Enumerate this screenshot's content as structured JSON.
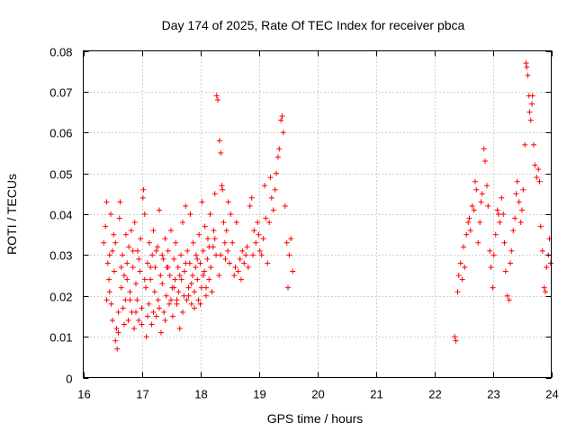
{
  "chart_data": {
    "type": "scatter",
    "title": "Day 174 of 2025, Rate Of TEC Index for receiver pbca",
    "xlabel": "GPS time / hours",
    "ylabel": "ROTI / TECUs",
    "xlim": [
      16,
      24
    ],
    "ylim": [
      0,
      0.08
    ],
    "xticks": [
      16,
      17,
      18,
      19,
      20,
      21,
      22,
      23,
      24
    ],
    "xtick_labels": [
      "16",
      "17",
      "18",
      "19",
      "20",
      "21",
      "22",
      "23",
      "24"
    ],
    "yticks": [
      0,
      0.01,
      0.02,
      0.03,
      0.04,
      0.05,
      0.06,
      0.07,
      0.08
    ],
    "ytick_labels": [
      "0",
      "0.01",
      "0.02",
      "0.03",
      "0.04",
      "0.05",
      "0.06",
      "0.07",
      "0.08"
    ],
    "grid": true,
    "marker": "+",
    "color": "#ff0000",
    "series": [
      {
        "name": "pbca",
        "points": [
          [
            16.35,
            0.033
          ],
          [
            16.38,
            0.037
          ],
          [
            16.4,
            0.043
          ],
          [
            16.42,
            0.028
          ],
          [
            16.44,
            0.024
          ],
          [
            16.45,
            0.021
          ],
          [
            16.47,
            0.04
          ],
          [
            16.48,
            0.018
          ],
          [
            16.5,
            0.031
          ],
          [
            16.52,
            0.035
          ],
          [
            16.53,
            0.026
          ],
          [
            16.55,
            0.009
          ],
          [
            16.57,
            0.012
          ],
          [
            16.58,
            0.007
          ],
          [
            16.6,
            0.011
          ],
          [
            16.62,
            0.039
          ],
          [
            16.63,
            0.043
          ],
          [
            16.65,
            0.022
          ],
          [
            16.67,
            0.03
          ],
          [
            16.68,
            0.017
          ],
          [
            16.7,
            0.025
          ],
          [
            16.72,
            0.019
          ],
          [
            16.73,
            0.035
          ],
          [
            16.75,
            0.028
          ],
          [
            16.77,
            0.014
          ],
          [
            16.78,
            0.032
          ],
          [
            16.8,
            0.021
          ],
          [
            16.82,
            0.036
          ],
          [
            16.83,
            0.016
          ],
          [
            16.85,
            0.027
          ],
          [
            16.87,
            0.012
          ],
          [
            16.88,
            0.038
          ],
          [
            16.9,
            0.023
          ],
          [
            16.92,
            0.019
          ],
          [
            16.93,
            0.031
          ],
          [
            16.95,
            0.014
          ],
          [
            16.97,
            0.026
          ],
          [
            16.98,
            0.034
          ],
          [
            17.0,
            0.017
          ],
          [
            17.02,
            0.044
          ],
          [
            17.03,
            0.046
          ],
          [
            17.05,
            0.04
          ],
          [
            17.07,
            0.022
          ],
          [
            17.08,
            0.01
          ],
          [
            17.1,
            0.028
          ],
          [
            17.12,
            0.018
          ],
          [
            17.13,
            0.033
          ],
          [
            17.15,
            0.024
          ],
          [
            17.17,
            0.013
          ],
          [
            17.18,
            0.03
          ],
          [
            17.2,
            0.036
          ],
          [
            17.22,
            0.021
          ],
          [
            17.23,
            0.027
          ],
          [
            17.25,
            0.015
          ],
          [
            17.27,
            0.032
          ],
          [
            17.28,
            0.019
          ],
          [
            17.3,
            0.041
          ],
          [
            17.32,
            0.025
          ],
          [
            17.33,
            0.011
          ],
          [
            17.35,
            0.023
          ],
          [
            17.37,
            0.029
          ],
          [
            17.38,
            0.016
          ],
          [
            17.4,
            0.034
          ],
          [
            17.42,
            0.02
          ],
          [
            17.43,
            0.027
          ],
          [
            17.45,
            0.031
          ],
          [
            17.47,
            0.018
          ],
          [
            17.48,
            0.025
          ],
          [
            17.5,
            0.036
          ],
          [
            17.52,
            0.022
          ],
          [
            17.53,
            0.015
          ],
          [
            17.55,
            0.029
          ],
          [
            17.57,
            0.024
          ],
          [
            17.58,
            0.033
          ],
          [
            17.6,
            0.019
          ],
          [
            17.62,
            0.027
          ],
          [
            17.63,
            0.021
          ],
          [
            17.65,
            0.012
          ],
          [
            17.67,
            0.03
          ],
          [
            17.68,
            0.024
          ],
          [
            17.7,
            0.038
          ],
          [
            17.72,
            0.02
          ],
          [
            17.73,
            0.026
          ],
          [
            17.75,
            0.042
          ],
          [
            17.77,
            0.019
          ],
          [
            17.78,
            0.031
          ],
          [
            17.8,
            0.022
          ],
          [
            17.82,
            0.028
          ],
          [
            17.83,
            0.04
          ],
          [
            17.85,
            0.018
          ],
          [
            17.87,
            0.025
          ],
          [
            17.88,
            0.033
          ],
          [
            17.9,
            0.021
          ],
          [
            17.92,
            0.027
          ],
          [
            17.93,
            0.03
          ],
          [
            17.95,
            0.024
          ],
          [
            17.97,
            0.019
          ],
          [
            17.98,
            0.035
          ],
          [
            18.0,
            0.028
          ],
          [
            18.02,
            0.022
          ],
          [
            18.03,
            0.043
          ],
          [
            18.05,
            0.031
          ],
          [
            18.07,
            0.026
          ],
          [
            18.08,
            0.037
          ],
          [
            18.1,
            0.02
          ],
          [
            18.12,
            0.029
          ],
          [
            18.13,
            0.034
          ],
          [
            18.15,
            0.024
          ],
          [
            18.17,
            0.04
          ],
          [
            18.18,
            0.027
          ],
          [
            18.2,
            0.021
          ],
          [
            18.22,
            0.032
          ],
          [
            18.23,
            0.036
          ],
          [
            18.25,
            0.045
          ],
          [
            18.27,
            0.03
          ],
          [
            18.28,
            0.069
          ],
          [
            18.3,
            0.068
          ],
          [
            18.32,
            0.025
          ],
          [
            18.33,
            0.058
          ],
          [
            18.35,
            0.055
          ],
          [
            18.37,
            0.047
          ],
          [
            18.38,
            0.046
          ],
          [
            18.4,
            0.038
          ],
          [
            18.42,
            0.033
          ],
          [
            18.43,
            0.029
          ],
          [
            18.45,
            0.036
          ],
          [
            18.47,
            0.031
          ],
          [
            18.48,
            0.043
          ],
          [
            18.5,
            0.028
          ],
          [
            18.52,
            0.04
          ],
          [
            18.55,
            0.033
          ],
          [
            18.58,
            0.025
          ],
          [
            18.6,
            0.027
          ],
          [
            18.62,
            0.038
          ],
          [
            18.65,
            0.026
          ],
          [
            18.68,
            0.029
          ],
          [
            18.7,
            0.024
          ],
          [
            18.72,
            0.031
          ],
          [
            18.75,
            0.028
          ],
          [
            18.78,
            0.03
          ],
          [
            18.8,
            0.032
          ],
          [
            18.82,
            0.027
          ],
          [
            18.85,
            0.042
          ],
          [
            18.88,
            0.044
          ],
          [
            18.9,
            0.03
          ],
          [
            18.92,
            0.036
          ],
          [
            18.95,
            0.033
          ],
          [
            18.98,
            0.038
          ],
          [
            19.0,
            0.035
          ],
          [
            19.02,
            0.031
          ],
          [
            19.05,
            0.03
          ],
          [
            19.08,
            0.034
          ],
          [
            19.1,
            0.047
          ],
          [
            19.12,
            0.039
          ],
          [
            19.15,
            0.028
          ],
          [
            19.18,
            0.038
          ],
          [
            19.2,
            0.049
          ],
          [
            19.22,
            0.044
          ],
          [
            19.25,
            0.041
          ],
          [
            19.28,
            0.046
          ],
          [
            19.3,
            0.05
          ],
          [
            19.33,
            0.054
          ],
          [
            19.35,
            0.056
          ],
          [
            19.38,
            0.063
          ],
          [
            19.4,
            0.064
          ],
          [
            19.42,
            0.06
          ],
          [
            19.45,
            0.042
          ],
          [
            19.48,
            0.033
          ],
          [
            19.5,
            0.022
          ],
          [
            19.52,
            0.03
          ],
          [
            19.55,
            0.034
          ],
          [
            19.58,
            0.026
          ],
          [
            16.4,
            0.019
          ],
          [
            16.5,
            0.014
          ],
          [
            16.6,
            0.016
          ],
          [
            16.7,
            0.013
          ],
          [
            16.8,
            0.019
          ],
          [
            16.9,
            0.016
          ],
          [
            17.0,
            0.013
          ],
          [
            17.1,
            0.015
          ],
          [
            17.2,
            0.016
          ],
          [
            17.3,
            0.017
          ],
          [
            17.4,
            0.014
          ],
          [
            17.5,
            0.019
          ],
          [
            17.6,
            0.018
          ],
          [
            17.7,
            0.016
          ],
          [
            17.8,
            0.02
          ],
          [
            17.9,
            0.017
          ],
          [
            18.0,
            0.018
          ],
          [
            18.1,
            0.022
          ],
          [
            16.45,
            0.03
          ],
          [
            16.55,
            0.033
          ],
          [
            16.65,
            0.027
          ],
          [
            16.75,
            0.024
          ],
          [
            16.85,
            0.031
          ],
          [
            16.95,
            0.029
          ],
          [
            17.05,
            0.024
          ],
          [
            17.15,
            0.027
          ],
          [
            17.25,
            0.031
          ],
          [
            17.35,
            0.03
          ],
          [
            17.45,
            0.027
          ],
          [
            17.55,
            0.022
          ],
          [
            17.65,
            0.025
          ],
          [
            17.75,
            0.028
          ],
          [
            17.85,
            0.023
          ],
          [
            17.95,
            0.029
          ],
          [
            18.05,
            0.025
          ],
          [
            18.15,
            0.032
          ],
          [
            18.25,
            0.034
          ],
          [
            18.35,
            0.03
          ],
          [
            22.35,
            0.01
          ],
          [
            22.37,
            0.009
          ],
          [
            22.4,
            0.021
          ],
          [
            22.42,
            0.025
          ],
          [
            22.45,
            0.028
          ],
          [
            22.48,
            0.024
          ],
          [
            22.5,
            0.032
          ],
          [
            22.52,
            0.027
          ],
          [
            22.55,
            0.035
          ],
          [
            22.58,
            0.038
          ],
          [
            22.6,
            0.039
          ],
          [
            22.62,
            0.036
          ],
          [
            22.65,
            0.042
          ],
          [
            22.68,
            0.041
          ],
          [
            22.7,
            0.048
          ],
          [
            22.72,
            0.046
          ],
          [
            22.75,
            0.033
          ],
          [
            22.78,
            0.038
          ],
          [
            22.8,
            0.043
          ],
          [
            22.82,
            0.045
          ],
          [
            22.85,
            0.056
          ],
          [
            22.87,
            0.053
          ],
          [
            22.9,
            0.047
          ],
          [
            22.92,
            0.042
          ],
          [
            22.95,
            0.031
          ],
          [
            22.97,
            0.027
          ],
          [
            23.0,
            0.022
          ],
          [
            23.02,
            0.03
          ],
          [
            23.05,
            0.035
          ],
          [
            23.08,
            0.041
          ],
          [
            23.1,
            0.04
          ],
          [
            23.12,
            0.038
          ],
          [
            23.15,
            0.044
          ],
          [
            23.18,
            0.04
          ],
          [
            23.2,
            0.033
          ],
          [
            23.22,
            0.026
          ],
          [
            23.25,
            0.02
          ],
          [
            23.28,
            0.019
          ],
          [
            23.3,
            0.028
          ],
          [
            23.32,
            0.031
          ],
          [
            23.35,
            0.036
          ],
          [
            23.38,
            0.039
          ],
          [
            23.4,
            0.045
          ],
          [
            23.42,
            0.048
          ],
          [
            23.45,
            0.043
          ],
          [
            23.48,
            0.038
          ],
          [
            23.5,
            0.041
          ],
          [
            23.52,
            0.046
          ],
          [
            23.55,
            0.057
          ],
          [
            23.57,
            0.077
          ],
          [
            23.58,
            0.076
          ],
          [
            23.6,
            0.074
          ],
          [
            23.62,
            0.069
          ],
          [
            23.63,
            0.065
          ],
          [
            23.65,
            0.063
          ],
          [
            23.67,
            0.067
          ],
          [
            23.68,
            0.069
          ],
          [
            23.7,
            0.057
          ],
          [
            23.72,
            0.052
          ],
          [
            23.75,
            0.049
          ],
          [
            23.78,
            0.051
          ],
          [
            23.8,
            0.048
          ],
          [
            23.82,
            0.037
          ],
          [
            23.85,
            0.031
          ],
          [
            23.88,
            0.022
          ],
          [
            23.9,
            0.021
          ],
          [
            23.92,
            0.027
          ],
          [
            23.95,
            0.03
          ],
          [
            23.97,
            0.034
          ],
          [
            23.99,
            0.028
          ]
        ]
      }
    ]
  }
}
